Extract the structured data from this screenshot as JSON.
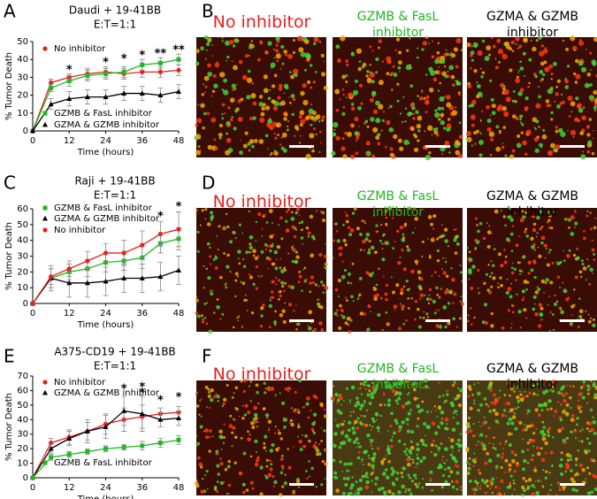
{
  "chart_data": [
    {
      "type": "line",
      "title": "Daudi + 19-41BB",
      "subtitle": "E:T=1:1",
      "xlabel": "Time (hours)",
      "ylabel": "% Tumor Death",
      "x": [
        0,
        6,
        12,
        18,
        24,
        30,
        36,
        42,
        48
      ],
      "xlim": [
        0,
        48
      ],
      "xticks": [
        0,
        12,
        24,
        36,
        48
      ],
      "ylim": [
        0,
        50
      ],
      "yticks": [
        0,
        10,
        20,
        30,
        40,
        50
      ],
      "series": [
        {
          "name": "No inhibitor",
          "color": "#e8211f",
          "marker": "circle",
          "values": [
            0,
            27,
            30,
            32,
            33,
            32,
            33,
            33,
            34
          ],
          "errors": [
            0,
            2,
            2,
            3,
            3,
            3,
            3,
            3,
            3
          ]
        },
        {
          "name": "GZMB & FasL inhibitor",
          "color": "#1fb81f",
          "marker": "square",
          "values": [
            0,
            24,
            28,
            31,
            32,
            33,
            37,
            38,
            40
          ],
          "errors": [
            0,
            2,
            3,
            3,
            3,
            3,
            3,
            3,
            3
          ]
        },
        {
          "name": "GZMA & GZMB inhibitor",
          "color": "#000000",
          "marker": "triangle",
          "values": [
            0,
            15,
            18,
            19,
            19,
            21,
            21,
            20,
            22
          ],
          "errors": [
            0,
            3,
            4,
            4,
            4,
            4,
            4,
            4,
            4
          ]
        }
      ],
      "annotations": [
        {
          "text": "*",
          "x": 12,
          "y": 34,
          "color": "#e8211f"
        },
        {
          "text": "*",
          "x": 24,
          "y": 38,
          "color": "#1fb81f"
        },
        {
          "text": "*",
          "x": 30,
          "y": 40,
          "color": "#1fb81f"
        },
        {
          "text": "*",
          "x": 36,
          "y": 42,
          "color": "#1fb81f"
        },
        {
          "text": "**",
          "x": 42,
          "y": 43,
          "color": "#1fb81f"
        },
        {
          "text": "**",
          "x": 48,
          "y": 45,
          "color": "#1fb81f"
        }
      ]
    },
    {
      "type": "line",
      "title": "Raji + 19-41BB",
      "subtitle": "E:T=1:1",
      "xlabel": "Time (hours)",
      "ylabel": "% Tumor Death",
      "x": [
        0,
        6,
        12,
        18,
        24,
        30,
        36,
        42,
        48
      ],
      "xlim": [
        0,
        48
      ],
      "xticks": [
        0,
        12,
        24,
        36,
        48
      ],
      "ylim": [
        0,
        60
      ],
      "yticks": [
        0,
        10,
        20,
        30,
        40,
        50,
        60
      ],
      "series": [
        {
          "name": "GZMB & FasL inhibitor",
          "color": "#1fb81f",
          "marker": "square",
          "values": [
            0,
            16,
            20,
            22,
            26,
            27,
            29,
            38,
            41
          ],
          "errors": [
            0,
            6,
            5,
            5,
            6,
            6,
            7,
            6,
            7
          ]
        },
        {
          "name": "GZMA & GZMB inhibitor",
          "color": "#000000",
          "marker": "triangle",
          "values": [
            0,
            16,
            13,
            13,
            14,
            16,
            16,
            17,
            21
          ],
          "errors": [
            0,
            8,
            9,
            9,
            9,
            9,
            9,
            9,
            9
          ]
        },
        {
          "name": "No inhibitor",
          "color": "#e8211f",
          "marker": "circle",
          "values": [
            0,
            17,
            22,
            27,
            32,
            32,
            37,
            44,
            47
          ],
          "errors": [
            0,
            5,
            5,
            6,
            6,
            8,
            9,
            8,
            11
          ]
        }
      ],
      "annotations": [
        {
          "text": "*",
          "x": 42,
          "y": 55,
          "color": "#e8211f"
        },
        {
          "text": "*",
          "x": 48,
          "y": 61,
          "color": "#e8211f"
        }
      ]
    },
    {
      "type": "line",
      "title": "A375-CD19 + 19-41BB",
      "subtitle": "E:T=1:1",
      "xlabel": "Time (hours)",
      "ylabel": "% Tumor Death",
      "x": [
        0,
        6,
        12,
        18,
        24,
        30,
        36,
        42,
        48
      ],
      "xlim": [
        0,
        48
      ],
      "xticks": [
        0,
        12,
        24,
        36,
        48
      ],
      "ylim": [
        0,
        70
      ],
      "yticks": [
        0,
        10,
        20,
        30,
        40,
        50,
        60,
        70
      ],
      "series": [
        {
          "name": "No inhibitor",
          "color": "#e8211f",
          "marker": "circle",
          "values": [
            0,
            24,
            28,
            32,
            37,
            40,
            42,
            44,
            45
          ],
          "errors": [
            0,
            3,
            5,
            6,
            7,
            8,
            8,
            4,
            4
          ]
        },
        {
          "name": "GZMA & GZMB inhibitor",
          "color": "#000000",
          "marker": "triangle",
          "values": [
            0,
            20,
            27,
            32,
            35,
            46,
            44,
            40,
            41
          ],
          "errors": [
            0,
            3,
            5,
            8,
            8,
            10,
            12,
            5,
            5
          ]
        },
        {
          "name": "GZMB & FasL inhibitor",
          "color": "#1fb81f",
          "marker": "square",
          "values": [
            0,
            14,
            16,
            18,
            20,
            21,
            22,
            24,
            26
          ],
          "errors": [
            0,
            2,
            2,
            2,
            2,
            2,
            3,
            3,
            3
          ]
        }
      ],
      "annotations": [
        {
          "text": "*",
          "x": 30,
          "y": 61,
          "color": "#000000"
        },
        {
          "text": "*",
          "x": 36,
          "y": 58,
          "color": "#000000"
        },
        {
          "text": "*",
          "x": 36,
          "y": 62,
          "color": "#e8211f"
        },
        {
          "text": "*",
          "x": 42,
          "y": 53,
          "color": "#e8211f"
        },
        {
          "text": "*",
          "x": 48,
          "y": 55,
          "color": "#e8211f"
        }
      ]
    }
  ],
  "panel_letters": [
    "A",
    "B",
    "C",
    "D",
    "E",
    "F"
  ],
  "image_titles": [
    [
      "No inhibitor",
      "GZMB & FasL inhibitor",
      "GZMA & GZMB inhibitor"
    ],
    [
      "No inhibitor",
      "GZMB & FasL inhibitor",
      "GZMA & GZMB inhibitor"
    ],
    [
      "No inhibitor",
      "GZMB & FasL inhibitor",
      "GZMA & GZMB inhibitor"
    ]
  ]
}
